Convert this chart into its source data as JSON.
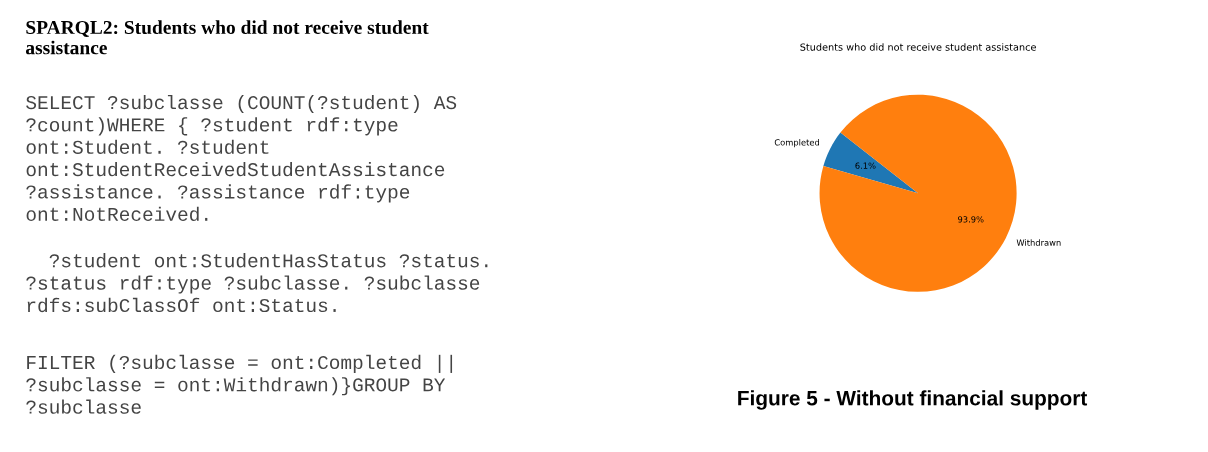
{
  "chart_data": {
    "type": "pie",
    "title": "Students who did not receive student assistance",
    "categories": [
      "Completed",
      "Withdrawn"
    ],
    "values": [
      6.1,
      93.9
    ],
    "colors": [
      "#1f77b4",
      "#ff7f0e"
    ],
    "data_labels": true,
    "value_labels": [
      "6.1%",
      "93.9%"
    ],
    "legend": false,
    "annotations": [
      "SPARQL2: Students who did not receive student\nassistance",
      "SELECT ?subclasse (COUNT(?student) AS\n?count)WHERE { ?student rdf:type\nont:Student. ?student\nont:StudentReceivedStudentAssistance\n?assistance. ?assistance rdf:type\nont:NotReceived.",
      "  ?student ont:StudentHasStatus ?status.\n?status rdf:type ?subclasse. ?subclasse\nrdfs:subClassOf ont:Status.",
      "FILTER (?subclasse = ont:Completed ||\n?subclasse = ont:Withdrawn)}GROUP BY\n?subclasse",
      "Figure 5 - Without financial support"
    ]
  }
}
